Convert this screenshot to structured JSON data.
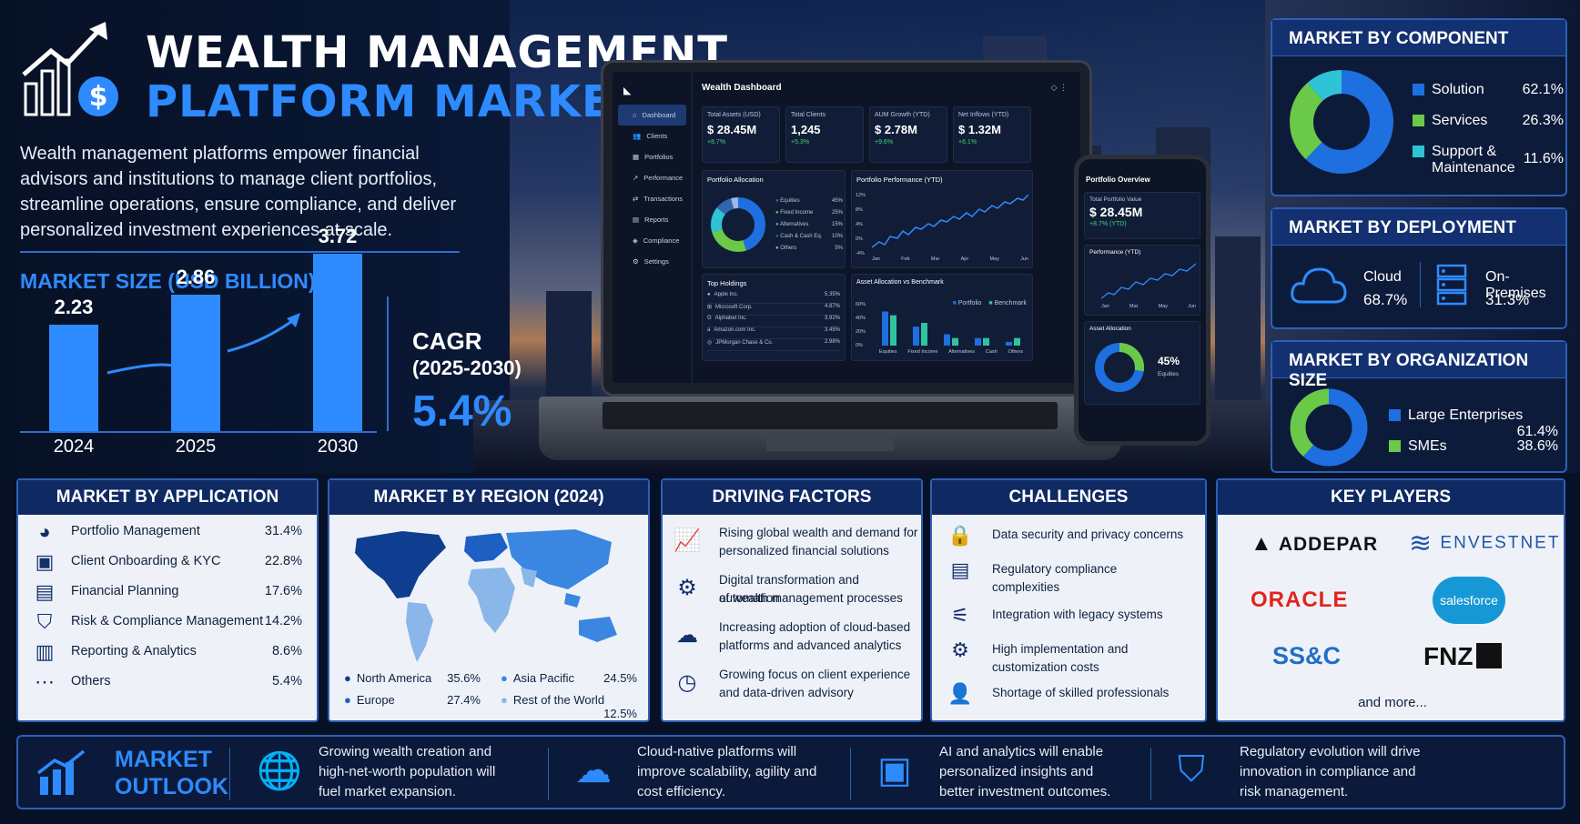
{
  "header": {
    "title_line1": "WEALTH MANAGEMENT",
    "title_line2": "PLATFORM MARKET",
    "intro": "Wealth management platforms empower financial advisors and institutions to manage client portfolios, streamline operations, ensure compliance, and deliver personalized investment experiences at scale."
  },
  "market_size": {
    "title": "MARKET SIZE (USD BILLION)",
    "cagr_label": "CAGR",
    "cagr_period": "(2025-2030)",
    "cagr_value": "5.4%"
  },
  "chart_data": {
    "type": "bar",
    "title": "MARKET SIZE (USD BILLION)",
    "categories": [
      "2024",
      "2025",
      "2030"
    ],
    "values": [
      2.23,
      2.86,
      3.72
    ],
    "value_labels": [
      "2.23",
      "2.86",
      "3.72"
    ],
    "ylim": [
      0,
      4
    ]
  },
  "dashboard": {
    "title": "Wealth Dashboard",
    "nav": [
      "Dashboard",
      "Clients",
      "Portfolios",
      "Performance",
      "Transactions",
      "Reports",
      "Compliance",
      "Settings"
    ],
    "kpis": [
      {
        "label": "Total Assets (USD)",
        "value": "$ 28.45M",
        "delta": "+8.7%"
      },
      {
        "label": "Total Clients",
        "value": "1,245",
        "delta": "+5.3%"
      },
      {
        "label": "AUM Growth (YTD)",
        "value": "$ 2.78M",
        "delta": "+9.6%"
      },
      {
        "label": "Net Inflows (YTD)",
        "value": "$ 1.32M",
        "delta": "+6.1%"
      }
    ],
    "alloc_title": "Portfolio Allocation",
    "alloc": [
      {
        "name": "Equities",
        "pct": "45%"
      },
      {
        "name": "Fixed Income",
        "pct": "25%"
      },
      {
        "name": "Alternatives",
        "pct": "15%"
      },
      {
        "name": "Cash & Cash Eq.",
        "pct": "10%"
      },
      {
        "name": "Others",
        "pct": "5%"
      }
    ],
    "perf_title": "Portfolio Performance (YTD)",
    "perf_y": [
      "12%",
      "8%",
      "4%",
      "0%",
      "-4%"
    ],
    "perf_x": [
      "Jan",
      "Feb",
      "Mar",
      "Apr",
      "May",
      "Jun"
    ],
    "holdings_title": "Top Holdings",
    "holdings": [
      {
        "name": "Apple Inc.",
        "pct": "5.35%"
      },
      {
        "name": "Microsoft Corp.",
        "pct": "4.87%"
      },
      {
        "name": "Alphabet Inc.",
        "pct": "3.92%"
      },
      {
        "name": "Amazon.com Inc.",
        "pct": "3.45%"
      },
      {
        "name": "JPMorgan Chase & Co.",
        "pct": "2.98%"
      }
    ],
    "bench_title": "Asset Allocation vs Benchmark",
    "bench_legend": [
      "Portfolio",
      "Benchmark"
    ],
    "bench_y": [
      "60%",
      "40%",
      "20%",
      "0%"
    ],
    "bench_x": [
      "Equities",
      "Fixed Income",
      "Alternatives",
      "Cash",
      "Others"
    ],
    "bench_portfolio": [
      45,
      25,
      15,
      10,
      5
    ],
    "bench_benchmark": [
      40,
      30,
      10,
      10,
      10
    ]
  },
  "phone": {
    "title": "Portfolio Overview",
    "total_label": "Total Portfolio Value",
    "total_value": "$ 28.45M",
    "total_delta": "+8.7% (YTD)",
    "perf_title": "Performance (YTD)",
    "perf_y": [
      "12%",
      "8%",
      "4%",
      "0%"
    ],
    "perf_x": [
      "Jan",
      "Mar",
      "May",
      "Jun"
    ],
    "alloc_title": "Asset Allocation",
    "alloc_pct": "45%",
    "alloc_label": "Equities"
  },
  "component": {
    "title": "MARKET BY COMPONENT",
    "items": [
      {
        "name": "Solution",
        "value": "62.1%",
        "share": 62.1,
        "color": "#1e6fe0"
      },
      {
        "name": "Services",
        "value": "26.3%",
        "share": 26.3,
        "color": "#6bc94a"
      },
      {
        "name": "Support &",
        "name2": "Maintenance",
        "value": "11.6%",
        "share": 11.6,
        "color": "#2ec4d6"
      }
    ]
  },
  "deployment": {
    "title": "MARKET BY DEPLOYMENT",
    "cloud_label": "Cloud",
    "cloud_value": "68.7%",
    "onprem_label": "On-Premises",
    "onprem_value": "31.3%"
  },
  "org_size": {
    "title": "MARKET BY ORGANIZATION SIZE",
    "items": [
      {
        "name": "Large Enterprises",
        "value": "61.4%",
        "share": 61.4,
        "color": "#1e6fe0"
      },
      {
        "name": "SMEs",
        "value": "38.6%",
        "share": 38.6,
        "color": "#6bc94a"
      }
    ]
  },
  "application": {
    "title": "MARKET BY APPLICATION",
    "items": [
      {
        "name": "Portfolio Management",
        "value": "31.4%",
        "icon": "pie-chart-icon"
      },
      {
        "name": "Client Onboarding & KYC",
        "value": "22.8%",
        "icon": "id-card-icon"
      },
      {
        "name": "Financial Planning",
        "value": "17.6%",
        "icon": "clipboard-icon"
      },
      {
        "name": "Risk & Compliance Management",
        "value": "14.2%",
        "icon": "shield-icon"
      },
      {
        "name": "Reporting & Analytics",
        "value": "8.6%",
        "icon": "bar-chart-icon"
      },
      {
        "name": "Others",
        "value": "5.4%",
        "icon": "more-icon"
      }
    ]
  },
  "region": {
    "title": "MARKET BY REGION (2024)",
    "items": [
      {
        "name": "North America",
        "value": "35.6%",
        "color": "#0f3d8f"
      },
      {
        "name": "Europe",
        "value": "27.4%",
        "color": "#1e5fc4"
      },
      {
        "name": "Asia Pacific",
        "value": "24.5%",
        "color": "#3a86e0"
      },
      {
        "name": "Rest of the World",
        "value": "12.5%",
        "color": "#8ab6ea"
      }
    ]
  },
  "drivers": {
    "title": "DRIVING FACTORS",
    "items": [
      {
        "l1": "Rising global wealth and demand for",
        "l2": "personalized financial solutions",
        "icon": "growth-chart-icon"
      },
      {
        "l1": "Digital transformation and automation",
        "l2": "of wealth management processes",
        "icon": "automation-gear-icon"
      },
      {
        "l1": "Increasing adoption of cloud-based",
        "l2": "platforms and advanced analytics",
        "icon": "cloud-icon"
      },
      {
        "l1": "Growing focus on client experience",
        "l2": "and data-driven advisory",
        "icon": "clock-refresh-icon"
      }
    ]
  },
  "challenges": {
    "title": "CHALLENGES",
    "items": [
      {
        "l1": "Data security and privacy concerns",
        "l2": "",
        "icon": "lock-icon"
      },
      {
        "l1": "Regulatory compliance",
        "l2": "complexities",
        "icon": "document-icon"
      },
      {
        "l1": "Integration with legacy systems",
        "l2": "",
        "icon": "sliders-icon"
      },
      {
        "l1": "High implementation and",
        "l2": "customization costs",
        "icon": "cost-gear-icon"
      },
      {
        "l1": "Shortage of skilled professionals",
        "l2": "",
        "icon": "person-icon"
      }
    ]
  },
  "players": {
    "title": "KEY PLAYERS",
    "names": [
      "ADDEPAR",
      "ENVESTNET",
      "ORACLE",
      "salesforce",
      "SS&C",
      "FNZ"
    ],
    "more": "and more..."
  },
  "outlook": {
    "title_l1": "MARKET",
    "title_l2": "OUTLOOK",
    "items": [
      {
        "l1": "Growing wealth creation and",
        "l2": "high-net-worth population will",
        "l3": "fuel market expansion.",
        "icon": "globe-icon"
      },
      {
        "l1": "Cloud-native platforms will",
        "l2": "improve scalability, agility and",
        "l3": "cost efficiency.",
        "icon": "cloud-gear-icon"
      },
      {
        "l1": "AI and analytics will enable",
        "l2": "personalized insights and",
        "l3": "better investment outcomes.",
        "icon": "ai-chip-icon"
      },
      {
        "l1": "Regulatory evolution will drive",
        "l2": "innovation in compliance and",
        "l3": "risk management.",
        "icon": "shield-check-icon"
      }
    ]
  }
}
